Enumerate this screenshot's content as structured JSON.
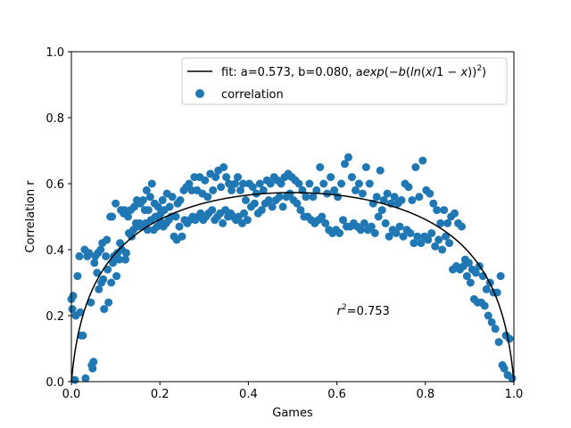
{
  "chart_data": {
    "type": "scatter",
    "xlabel": "Games",
    "ylabel": "Correlation r",
    "xlim": [
      0.0,
      1.0
    ],
    "ylim": [
      0.0,
      1.0
    ],
    "grid": false,
    "legend_position": "upper-right",
    "x_ticks": [
      {
        "value": 0.0,
        "label": "0.0"
      },
      {
        "value": 0.2,
        "label": "0.2"
      },
      {
        "value": 0.4,
        "label": "0.4"
      },
      {
        "value": 0.6,
        "label": "0.6"
      },
      {
        "value": 0.8,
        "label": "0.8"
      },
      {
        "value": 1.0,
        "label": "1.0"
      }
    ],
    "y_ticks": [
      {
        "value": 0.0,
        "label": "0.0"
      },
      {
        "value": 0.2,
        "label": "0.2"
      },
      {
        "value": 0.4,
        "label": "0.4"
      },
      {
        "value": 0.6,
        "label": "0.6"
      },
      {
        "value": 0.8,
        "label": "0.8"
      },
      {
        "value": 1.0,
        "label": "1.0"
      }
    ],
    "fit": {
      "name": "fit",
      "a": 0.573,
      "b": 0.08,
      "label_prefix": "fit: a=0.573, b=0.080, a",
      "label_formula": {
        "exp": "exp",
        "open1": "(−",
        "b": "b",
        "open2": "(",
        "ln": "ln",
        "open3": "(",
        "x": "x",
        "slash": "/1 − ",
        "x2": "x",
        "close": "))",
        "sup": "2",
        "end": ")"
      },
      "color": "#000000"
    },
    "annotation": {
      "r": "r",
      "sup": "2",
      "value": "=0.753",
      "x": 0.6,
      "y": 0.2
    },
    "series": [
      {
        "name": "correlation",
        "color": "#1f77b4",
        "points": [
          [
            0.0,
            0.25
          ],
          [
            0.002,
            0.22
          ],
          [
            0.004,
            0.26
          ],
          [
            0.008,
            0.005
          ],
          [
            0.01,
            0.2
          ],
          [
            0.014,
            0.32
          ],
          [
            0.018,
            0.38
          ],
          [
            0.02,
            0.21
          ],
          [
            0.022,
            0.14
          ],
          [
            0.026,
            0.14
          ],
          [
            0.03,
            0.4
          ],
          [
            0.032,
            0.01
          ],
          [
            0.036,
            0.38
          ],
          [
            0.04,
            0.39
          ],
          [
            0.044,
            0.24
          ],
          [
            0.046,
            0.05
          ],
          [
            0.048,
            0.04
          ],
          [
            0.05,
            0.06
          ],
          [
            0.052,
            0.36
          ],
          [
            0.054,
            0.38
          ],
          [
            0.058,
            0.33
          ],
          [
            0.06,
            0.39
          ],
          [
            0.062,
            0.28
          ],
          [
            0.066,
            0.4
          ],
          [
            0.068,
            0.3
          ],
          [
            0.07,
            0.42
          ],
          [
            0.072,
            0.31
          ],
          [
            0.074,
            0.22
          ],
          [
            0.078,
            0.38
          ],
          [
            0.08,
            0.43
          ],
          [
            0.082,
            0.34
          ],
          [
            0.084,
            0.24
          ],
          [
            0.088,
            0.5
          ],
          [
            0.09,
            0.3
          ],
          [
            0.092,
            0.5
          ],
          [
            0.094,
            0.36
          ],
          [
            0.096,
            0.38
          ],
          [
            0.1,
            0.54
          ],
          [
            0.102,
            0.32
          ],
          [
            0.104,
            0.39
          ],
          [
            0.108,
            0.37
          ],
          [
            0.11,
            0.42
          ],
          [
            0.112,
            0.52
          ],
          [
            0.114,
            0.4
          ],
          [
            0.118,
            0.51
          ],
          [
            0.12,
            0.52
          ],
          [
            0.122,
            0.37
          ],
          [
            0.124,
            0.39
          ],
          [
            0.128,
            0.5
          ],
          [
            0.13,
            0.45
          ],
          [
            0.134,
            0.52
          ],
          [
            0.136,
            0.44
          ],
          [
            0.14,
            0.46
          ],
          [
            0.142,
            0.53
          ],
          [
            0.146,
            0.48
          ],
          [
            0.148,
            0.55
          ],
          [
            0.15,
            0.47
          ],
          [
            0.154,
            0.48
          ],
          [
            0.156,
            0.54
          ],
          [
            0.16,
            0.47
          ],
          [
            0.162,
            0.55
          ],
          [
            0.166,
            0.52
          ],
          [
            0.168,
            0.48
          ],
          [
            0.17,
            0.58
          ],
          [
            0.172,
            0.46
          ],
          [
            0.174,
            0.52
          ],
          [
            0.178,
            0.56
          ],
          [
            0.18,
            0.49
          ],
          [
            0.182,
            0.6
          ],
          [
            0.186,
            0.46
          ],
          [
            0.188,
            0.54
          ],
          [
            0.19,
            0.5
          ],
          [
            0.194,
            0.47
          ],
          [
            0.196,
            0.53
          ],
          [
            0.2,
            0.49
          ],
          [
            0.202,
            0.51
          ],
          [
            0.206,
            0.55
          ],
          [
            0.208,
            0.47
          ],
          [
            0.21,
            0.52
          ],
          [
            0.214,
            0.48
          ],
          [
            0.216,
            0.57
          ],
          [
            0.22,
            0.49
          ],
          [
            0.222,
            0.53
          ],
          [
            0.226,
            0.5
          ],
          [
            0.228,
            0.56
          ],
          [
            0.232,
            0.44
          ],
          [
            0.236,
            0.5
          ],
          [
            0.238,
            0.43
          ],
          [
            0.24,
            0.54
          ],
          [
            0.244,
            0.47
          ],
          [
            0.246,
            0.55
          ],
          [
            0.25,
            0.44
          ],
          [
            0.254,
            0.58
          ],
          [
            0.256,
            0.49
          ],
          [
            0.26,
            0.59
          ],
          [
            0.262,
            0.48
          ],
          [
            0.266,
            0.6
          ],
          [
            0.268,
            0.49
          ],
          [
            0.272,
            0.58
          ],
          [
            0.274,
            0.5
          ],
          [
            0.278,
            0.62
          ],
          [
            0.28,
            0.49
          ],
          [
            0.284,
            0.58
          ],
          [
            0.286,
            0.5
          ],
          [
            0.29,
            0.62
          ],
          [
            0.292,
            0.51
          ],
          [
            0.296,
            0.57
          ],
          [
            0.298,
            0.49
          ],
          [
            0.302,
            0.61
          ],
          [
            0.304,
            0.5
          ],
          [
            0.308,
            0.56
          ],
          [
            0.31,
            0.51
          ],
          [
            0.314,
            0.63
          ],
          [
            0.318,
            0.52
          ],
          [
            0.32,
            0.58
          ],
          [
            0.324,
            0.49
          ],
          [
            0.326,
            0.62
          ],
          [
            0.33,
            0.5
          ],
          [
            0.332,
            0.64
          ],
          [
            0.336,
            0.51
          ],
          [
            0.338,
            0.59
          ],
          [
            0.342,
            0.48
          ],
          [
            0.344,
            0.65
          ],
          [
            0.348,
            0.52
          ],
          [
            0.35,
            0.62
          ],
          [
            0.354,
            0.5
          ],
          [
            0.356,
            0.6
          ],
          [
            0.36,
            0.51
          ],
          [
            0.362,
            0.58
          ],
          [
            0.366,
            0.5
          ],
          [
            0.37,
            0.6
          ],
          [
            0.372,
            0.49
          ],
          [
            0.376,
            0.62
          ],
          [
            0.378,
            0.5
          ],
          [
            0.382,
            0.58
          ],
          [
            0.386,
            0.48
          ],
          [
            0.388,
            0.6
          ],
          [
            0.39,
            0.51
          ],
          [
            0.394,
            0.55
          ],
          [
            0.398,
            0.49
          ],
          [
            0.402,
            0.6
          ],
          [
            0.406,
            0.53
          ],
          [
            0.41,
            0.59
          ],
          [
            0.414,
            0.54
          ],
          [
            0.418,
            0.57
          ],
          [
            0.422,
            0.51
          ],
          [
            0.426,
            0.6
          ],
          [
            0.43,
            0.52
          ],
          [
            0.434,
            0.58
          ],
          [
            0.438,
            0.54
          ],
          [
            0.442,
            0.61
          ],
          [
            0.446,
            0.55
          ],
          [
            0.45,
            0.6
          ],
          [
            0.454,
            0.53
          ],
          [
            0.458,
            0.62
          ],
          [
            0.462,
            0.55
          ],
          [
            0.466,
            0.61
          ],
          [
            0.47,
            0.56
          ],
          [
            0.474,
            0.6
          ],
          [
            0.478,
            0.53
          ],
          [
            0.482,
            0.62
          ],
          [
            0.486,
            0.56
          ],
          [
            0.49,
            0.63
          ],
          [
            0.494,
            0.57
          ],
          [
            0.498,
            0.62
          ],
          [
            0.502,
            0.55
          ],
          [
            0.506,
            0.61
          ],
          [
            0.51,
            0.54
          ],
          [
            0.514,
            0.6
          ],
          [
            0.518,
            0.52
          ],
          [
            0.522,
            0.58
          ],
          [
            0.526,
            0.5
          ],
          [
            0.53,
            0.56
          ],
          [
            0.534,
            0.5
          ],
          [
            0.538,
            0.6
          ],
          [
            0.542,
            0.49
          ],
          [
            0.546,
            0.56
          ],
          [
            0.55,
            0.48
          ],
          [
            0.554,
            0.58
          ],
          [
            0.558,
            0.49
          ],
          [
            0.562,
            0.65
          ],
          [
            0.566,
            0.5
          ],
          [
            0.57,
            0.6
          ],
          [
            0.574,
            0.48
          ],
          [
            0.578,
            0.57
          ],
          [
            0.582,
            0.46
          ],
          [
            0.586,
            0.62
          ],
          [
            0.59,
            0.45
          ],
          [
            0.594,
            0.58
          ],
          [
            0.598,
            0.46
          ],
          [
            0.602,
            0.56
          ],
          [
            0.606,
            0.45
          ],
          [
            0.61,
            0.6
          ],
          [
            0.614,
            0.49
          ],
          [
            0.618,
            0.66
          ],
          [
            0.622,
            0.47
          ],
          [
            0.626,
            0.68
          ],
          [
            0.63,
            0.47
          ],
          [
            0.634,
            0.62
          ],
          [
            0.638,
            0.48
          ],
          [
            0.642,
            0.58
          ],
          [
            0.646,
            0.47
          ],
          [
            0.65,
            0.6
          ],
          [
            0.654,
            0.46
          ],
          [
            0.658,
            0.57
          ],
          [
            0.662,
            0.48
          ],
          [
            0.666,
            0.65
          ],
          [
            0.67,
            0.46
          ],
          [
            0.674,
            0.6
          ],
          [
            0.678,
            0.47
          ],
          [
            0.682,
            0.54
          ],
          [
            0.686,
            0.45
          ],
          [
            0.69,
            0.56
          ],
          [
            0.694,
            0.5
          ],
          [
            0.698,
            0.64
          ],
          [
            0.702,
            0.52
          ],
          [
            0.706,
            0.55
          ],
          [
            0.71,
            0.48
          ],
          [
            0.714,
            0.57
          ],
          [
            0.718,
            0.44
          ],
          [
            0.722,
            0.54
          ],
          [
            0.726,
            0.46
          ],
          [
            0.73,
            0.56
          ],
          [
            0.734,
            0.45
          ],
          [
            0.738,
            0.54
          ],
          [
            0.742,
            0.47
          ],
          [
            0.746,
            0.55
          ],
          [
            0.75,
            0.44
          ],
          [
            0.754,
            0.6
          ],
          [
            0.758,
            0.46
          ],
          [
            0.762,
            0.59
          ],
          [
            0.766,
            0.45
          ],
          [
            0.77,
            0.55
          ],
          [
            0.774,
            0.42
          ],
          [
            0.778,
            0.65
          ],
          [
            0.782,
            0.44
          ],
          [
            0.786,
            0.56
          ],
          [
            0.79,
            0.42
          ],
          [
            0.794,
            0.67
          ],
          [
            0.798,
            0.44
          ],
          [
            0.802,
            0.58
          ],
          [
            0.806,
            0.43
          ],
          [
            0.81,
            0.57
          ],
          [
            0.814,
            0.45
          ],
          [
            0.818,
            0.54
          ],
          [
            0.822,
            0.41
          ],
          [
            0.826,
            0.52
          ],
          [
            0.83,
            0.43
          ],
          [
            0.834,
            0.48
          ],
          [
            0.838,
            0.4
          ],
          [
            0.842,
            0.52
          ],
          [
            0.846,
            0.44
          ],
          [
            0.85,
            0.48
          ],
          [
            0.854,
            0.42
          ],
          [
            0.858,
            0.5
          ],
          [
            0.862,
            0.34
          ],
          [
            0.866,
            0.51
          ],
          [
            0.87,
            0.35
          ],
          [
            0.874,
            0.48
          ],
          [
            0.878,
            0.34
          ],
          [
            0.882,
            0.47
          ],
          [
            0.886,
            0.35
          ],
          [
            0.89,
            0.37
          ],
          [
            0.894,
            0.32
          ],
          [
            0.898,
            0.36
          ],
          [
            0.902,
            0.3
          ],
          [
            0.906,
            0.34
          ],
          [
            0.91,
            0.25
          ],
          [
            0.914,
            0.33
          ],
          [
            0.918,
            0.24
          ],
          [
            0.922,
            0.35
          ],
          [
            0.926,
            0.24
          ],
          [
            0.93,
            0.32
          ],
          [
            0.934,
            0.23
          ],
          [
            0.938,
            0.28
          ],
          [
            0.942,
            0.2
          ],
          [
            0.946,
            0.3
          ],
          [
            0.95,
            0.18
          ],
          [
            0.954,
            0.27
          ],
          [
            0.958,
            0.16
          ],
          [
            0.962,
            0.27
          ],
          [
            0.966,
            0.12
          ],
          [
            0.97,
            0.32
          ],
          [
            0.974,
            0.05
          ],
          [
            0.978,
            0.04
          ],
          [
            0.982,
            0.14
          ],
          [
            0.986,
            0.02
          ],
          [
            0.99,
            0.13
          ],
          [
            0.996,
            0.01
          ]
        ]
      }
    ]
  }
}
